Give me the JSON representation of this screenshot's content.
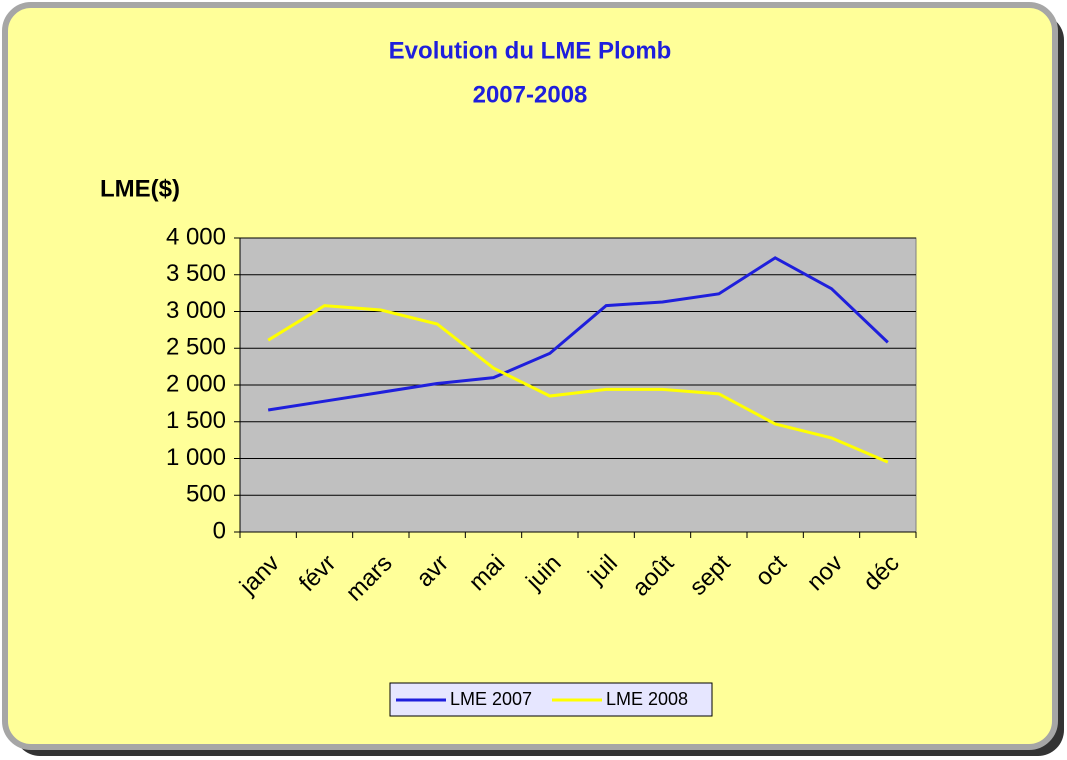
{
  "chart_data": {
    "type": "line",
    "title": "Evolution du LME Plomb",
    "subtitle": "2007-2008",
    "y_label": "LME($)",
    "categories": [
      "janv",
      "févr",
      "mars",
      "avr",
      "mai",
      "juin",
      "juil",
      "août",
      "sept",
      "oct",
      "nov",
      "déc"
    ],
    "series": [
      {
        "name": "LME 2007",
        "color": "#1f1fdc",
        "values": [
          1660,
          1780,
          1900,
          2020,
          2100,
          2430,
          3080,
          3130,
          3240,
          3730,
          3310,
          2580
        ]
      },
      {
        "name": "LME 2008",
        "color": "#ffff00",
        "values": [
          2610,
          3080,
          3020,
          2830,
          2230,
          1850,
          1940,
          1940,
          1880,
          1470,
          1280,
          950
        ]
      }
    ],
    "ylim": [
      0,
      4000
    ],
    "yticks": [
      0,
      500,
      {
        "value": 1000,
        "label": "1 000"
      },
      {
        "value": 1500,
        "label": "1 500"
      },
      {
        "value": 2000,
        "label": "2 000"
      },
      {
        "value": 2500,
        "label": "2 500"
      },
      {
        "value": 3000,
        "label": "3 000"
      },
      {
        "value": 3500,
        "label": "3 500"
      },
      {
        "value": 4000,
        "label": "4 000"
      }
    ],
    "grid": true,
    "legend": "bottom"
  }
}
